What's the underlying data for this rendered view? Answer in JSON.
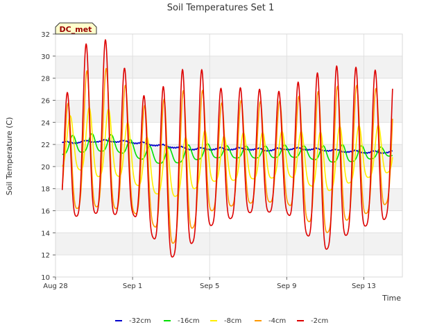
{
  "chart_data": {
    "type": "line",
    "title": "Soil Temperatures Set 1",
    "ylabel": "Soil Temperature (C)",
    "xlabel": "Time",
    "site_label": "DC_met",
    "x_start": "Aug 28",
    "x_range_days": [
      0,
      18
    ],
    "ylim": [
      10,
      32
    ],
    "yticks": [
      10,
      12,
      14,
      16,
      18,
      20,
      22,
      24,
      26,
      28,
      30,
      32
    ],
    "xticks": [
      {
        "day": 0,
        "label": "Aug 28"
      },
      {
        "day": 4,
        "label": "Sep 1"
      },
      {
        "day": 8,
        "label": "Sep 5"
      },
      {
        "day": 12,
        "label": "Sep 9"
      },
      {
        "day": 16,
        "label": "Sep 13"
      }
    ],
    "grid": true,
    "legend_position": "bottom",
    "x_data_range_days": [
      0.35,
      17.5
    ],
    "colors": {
      "-32cm": "#0000cc",
      "-16cm": "#00e000",
      "-8cm": "#ffee00",
      "-4cm": "#ff9900",
      "-2cm": "#dd0000"
    },
    "series": [
      {
        "name": "-32cm",
        "daily_mean": [
          22.1,
          22.2,
          22.3,
          22.3,
          22.2,
          22.0,
          21.8,
          21.6,
          21.6,
          21.6,
          21.6,
          21.5,
          21.6,
          21.6,
          21.5,
          21.4,
          21.3,
          21.3,
          21.4
        ],
        "daily_amplitude": [
          0.1,
          0.1,
          0.1,
          0.1,
          0.1,
          0.1,
          0.1,
          0.1,
          0.1,
          0.1,
          0.1,
          0.1,
          0.1,
          0.1,
          0.1,
          0.1,
          0.1,
          0.1,
          0.1
        ]
      },
      {
        "name": "-16cm",
        "daily_mean": [
          21.5,
          21.9,
          22.0,
          22.0,
          21.5,
          20.9,
          20.8,
          21.1,
          21.3,
          21.2,
          21.2,
          21.2,
          21.3,
          21.2,
          21.0,
          21.0,
          21.1,
          21.2,
          21.5
        ],
        "daily_amplitude": [
          0.7,
          0.9,
          0.9,
          0.8,
          0.8,
          0.8,
          0.8,
          0.8,
          0.7,
          0.6,
          0.6,
          0.6,
          0.6,
          0.6,
          0.8,
          0.9,
          0.7,
          0.5,
          0.5
        ]
      },
      {
        "name": "-8cm",
        "daily_mean": [
          21.0,
          22.0,
          21.5,
          21.6,
          20.5,
          19.5,
          19.0,
          19.8,
          20.5,
          20.2,
          20.6,
          20.5,
          20.8,
          20.3,
          19.8,
          20.5,
          20.8,
          21.0,
          22.0
        ],
        "daily_amplitude": [
          1.5,
          2.9,
          3.5,
          3.2,
          2.8,
          2.6,
          2.6,
          2.8,
          2.6,
          2.1,
          2.4,
          2.3,
          2.2,
          2.6,
          3.0,
          3.0,
          2.6,
          2.5,
          2.5
        ]
      },
      {
        "name": "-4cm",
        "daily_mean": [
          18.5,
          21.0,
          21.2,
          21.2,
          20.0,
          18.8,
          18.3,
          19.2,
          20.2,
          19.8,
          20.5,
          20.2,
          20.4,
          19.6,
          19.0,
          19.9,
          20.2,
          20.5,
          22.0
        ],
        "daily_amplitude": [
          2.0,
          6.8,
          6.8,
          7.0,
          5.8,
          5.6,
          7.6,
          7.0,
          6.0,
          4.8,
          5.4,
          4.8,
          5.2,
          6.2,
          7.2,
          6.8,
          6.4,
          5.8,
          5.6
        ]
      },
      {
        "name": "-2cm",
        "daily_mean": [
          17.0,
          21.5,
          21.8,
          21.9,
          20.1,
          18.5,
          18.1,
          19.3,
          20.0,
          19.5,
          20.5,
          20.0,
          20.2,
          19.4,
          18.8,
          19.8,
          20.1,
          20.4,
          22.0
        ],
        "daily_amplitude": [
          3.0,
          8.5,
          8.5,
          8.8,
          6.2,
          6.8,
          9.0,
          9.0,
          7.6,
          6.0,
          6.6,
          5.8,
          6.2,
          7.8,
          9.0,
          8.6,
          7.8,
          7.5,
          7.2
        ]
      }
    ]
  }
}
